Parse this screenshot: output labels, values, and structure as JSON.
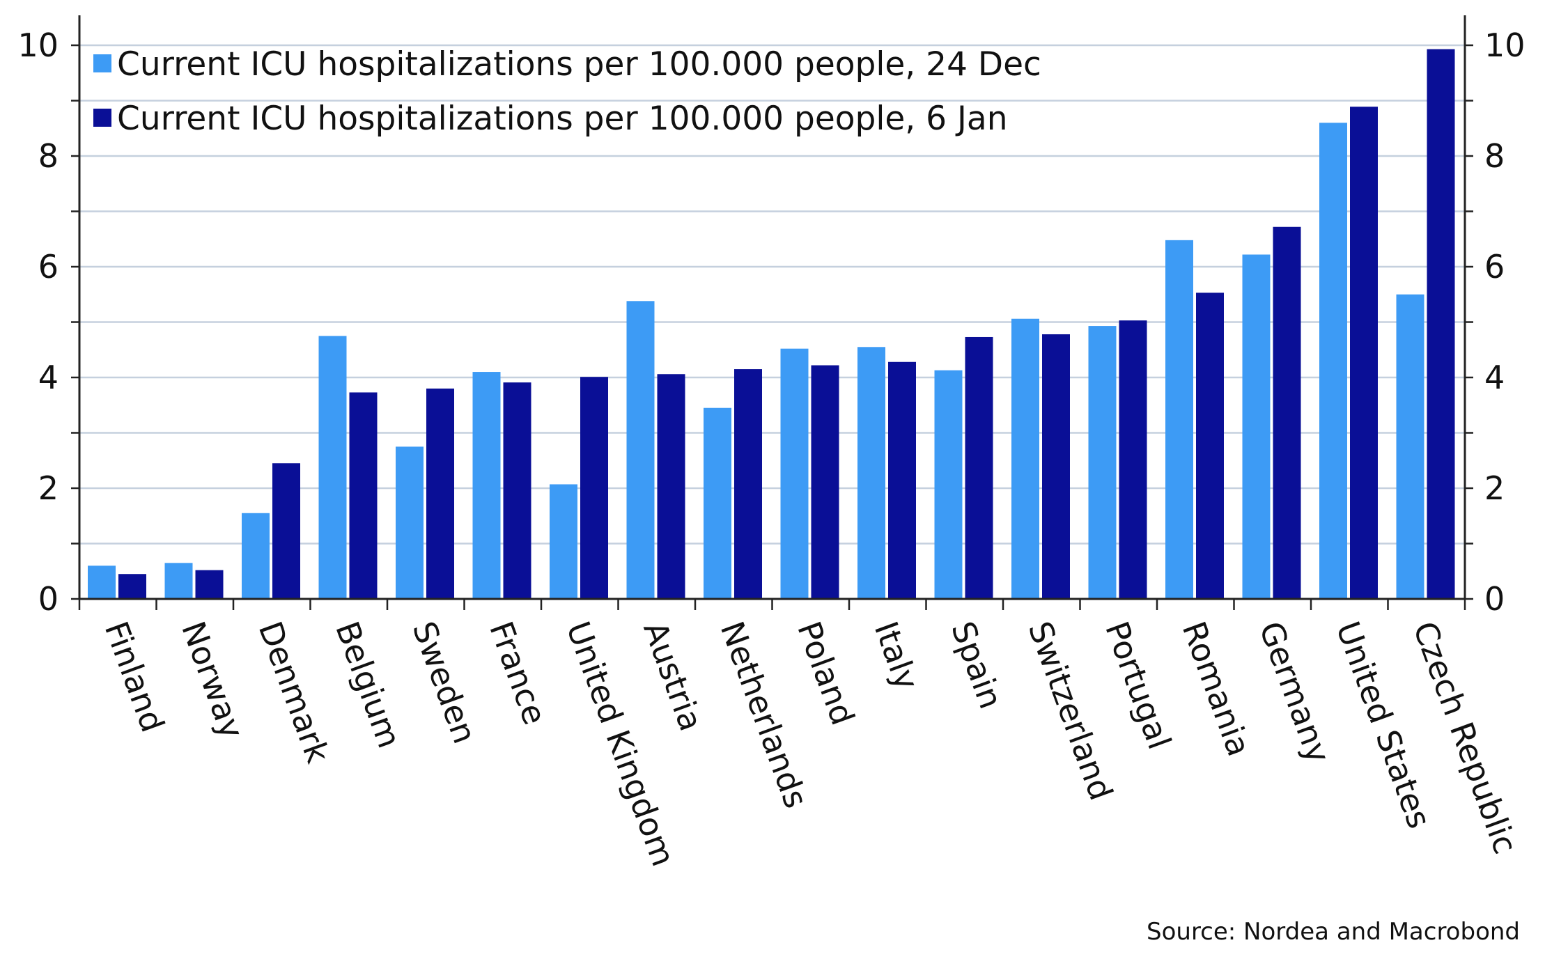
{
  "chart_data": {
    "type": "bar",
    "categories": [
      "Finland",
      "Norway",
      "Denmark",
      "Belgium",
      "Sweden",
      "France",
      "United Kingdom",
      "Austria",
      "Netherlands",
      "Poland",
      "Italy",
      "Spain",
      "Switzerland",
      "Portugal",
      "Romania",
      "Germany",
      "United States",
      "Czech Republic"
    ],
    "series": [
      {
        "name": "Current ICU hospitalizations per 100.000 people, 24 Dec",
        "color": "#3d9bf5",
        "values": [
          0.6,
          0.65,
          1.55,
          4.75,
          2.75,
          4.1,
          2.07,
          5.38,
          3.45,
          4.52,
          4.55,
          4.13,
          5.06,
          4.93,
          6.48,
          6.22,
          8.6,
          5.5
        ]
      },
      {
        "name": "Current ICU hospitalizations per 100.000 people, 6 Jan",
        "color": "#0a0f96",
        "values": [
          0.45,
          0.52,
          2.45,
          3.73,
          3.8,
          3.91,
          4.01,
          4.06,
          4.15,
          4.22,
          4.28,
          4.73,
          4.78,
          5.03,
          5.53,
          6.72,
          8.89,
          9.93
        ]
      }
    ],
    "ylim": [
      0,
      10
    ],
    "yticks": [
      0,
      2,
      4,
      6,
      8,
      10
    ],
    "grid": true,
    "legend": "top-left",
    "xlabel": "",
    "ylabel": ""
  },
  "source": "Source: Nordea and Macrobond"
}
